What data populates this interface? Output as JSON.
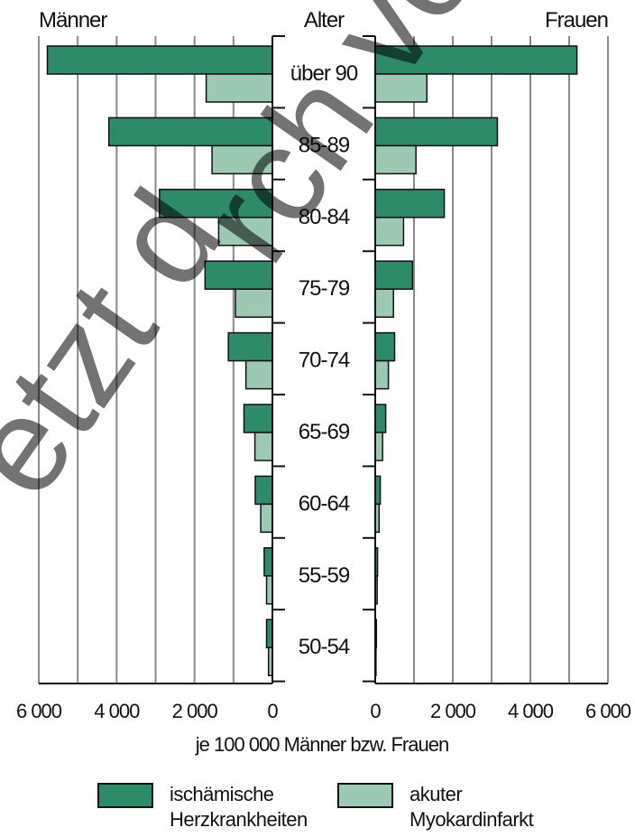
{
  "chart_data": {
    "type": "bar",
    "orientation": "horizontal",
    "layout": "population-pyramid",
    "left_title": "Männer",
    "center_title": "Alter",
    "right_title": "Frauen",
    "xlabel": "je 100 000 Männer bzw. Frauen",
    "xlim": [
      0,
      6000
    ],
    "x_ticks": [
      0,
      2000,
      4000,
      6000
    ],
    "x_tick_labels": [
      "0",
      "2 000",
      "4 000",
      "6 000"
    ],
    "categories": [
      "über 90",
      "85-89",
      "80-84",
      "75-79",
      "70-74",
      "65-69",
      "60-64",
      "55-59",
      "50-54"
    ],
    "series": [
      {
        "name": "ischämische Herzkrankheiten",
        "color": "#2e8b6a",
        "men": [
          5780,
          4200,
          2900,
          1730,
          1130,
          730,
          440,
          210,
          150
        ],
        "women": [
          5200,
          3150,
          1780,
          960,
          500,
          270,
          130,
          60,
          30
        ]
      },
      {
        "name": "akuter Myokardinfarkt",
        "color": "#9cc9b3",
        "men": [
          1700,
          1550,
          1380,
          950,
          680,
          450,
          300,
          150,
          100
        ],
        "women": [
          1330,
          1050,
          730,
          470,
          340,
          190,
          100,
          50,
          20
        ]
      }
    ],
    "grid": true
  },
  "legend": {
    "items": [
      {
        "line1": "ischämische",
        "line2": "Herzkrankheiten",
        "color": "#2e8b6a"
      },
      {
        "line1": "akuter",
        "line2": "Myokardinfarkt",
        "color": "#9cc9b3"
      }
    ]
  }
}
